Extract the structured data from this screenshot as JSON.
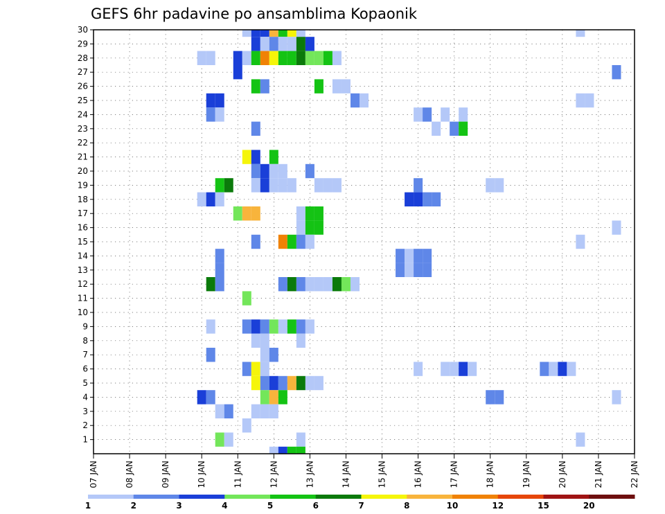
{
  "chart_data": {
    "type": "heatmap",
    "title": "GEFS 6hr padavine po ansamblima Kopaonik",
    "xlabel": "",
    "ylabel": "",
    "x_ticks": [
      "07 JAN",
      "08 JAN",
      "09 JAN",
      "10 JAN",
      "11 JAN",
      "12 JAN",
      "13 JAN",
      "14 JAN",
      "15 JAN",
      "16 JAN",
      "17 JAN",
      "18 JAN",
      "19 JAN",
      "20 JAN",
      "21 JAN",
      "22 JAN"
    ],
    "y_ticks": [
      1,
      2,
      3,
      4,
      5,
      6,
      7,
      8,
      9,
      10,
      11,
      12,
      13,
      14,
      15,
      16,
      17,
      18,
      19,
      20,
      21,
      22,
      23,
      24,
      25,
      26,
      27,
      28,
      29,
      30
    ],
    "xlim_days": [
      0,
      15
    ],
    "ylim_members": [
      0,
      30
    ],
    "grid": true,
    "color_scale": {
      "levels": [
        1,
        2,
        3,
        4,
        5,
        6,
        7,
        8,
        10,
        12,
        15,
        20
      ],
      "colors": [
        "#b4c8f8",
        "#5f87e8",
        "#1a3fd8",
        "#73e65a",
        "#14c314",
        "#0b7a0b",
        "#f5f50a",
        "#f8b43c",
        "#f08205",
        "#e6460a",
        "#a01414",
        "#6e0f0f"
      ]
    },
    "cells": [
      [
        30,
        11.25,
        1
      ],
      [
        30,
        11.5,
        3
      ],
      [
        30,
        11.75,
        3
      ],
      [
        30,
        12,
        8
      ],
      [
        30,
        12.25,
        5
      ],
      [
        30,
        12.5,
        7
      ],
      [
        30,
        12.75,
        1
      ],
      [
        30,
        20.5,
        1
      ],
      [
        29,
        11.5,
        3
      ],
      [
        29,
        11.75,
        1
      ],
      [
        29,
        12,
        2
      ],
      [
        29,
        12.25,
        1
      ],
      [
        29,
        12.5,
        1
      ],
      [
        29,
        12.75,
        6
      ],
      [
        29,
        13,
        3
      ],
      [
        28,
        10,
        1
      ],
      [
        28,
        10.25,
        1
      ],
      [
        28,
        11,
        3
      ],
      [
        28,
        11.25,
        1
      ],
      [
        28,
        11.5,
        5
      ],
      [
        28,
        11.75,
        9
      ],
      [
        28,
        12,
        7
      ],
      [
        28,
        12.25,
        5
      ],
      [
        28,
        12.5,
        5
      ],
      [
        28,
        12.75,
        6
      ],
      [
        28,
        13,
        4
      ],
      [
        28,
        13.25,
        4
      ],
      [
        28,
        13.5,
        5
      ],
      [
        28,
        13.75,
        1
      ],
      [
        27,
        11,
        3
      ],
      [
        27,
        21.5,
        2
      ],
      [
        26,
        11.5,
        5
      ],
      [
        26,
        11.75,
        2
      ],
      [
        26,
        13.25,
        5
      ],
      [
        26,
        13.75,
        1
      ],
      [
        26,
        14,
        1
      ],
      [
        25,
        10.25,
        3
      ],
      [
        25,
        10.5,
        3
      ],
      [
        25,
        14.25,
        2
      ],
      [
        25,
        14.5,
        1
      ],
      [
        25,
        20.5,
        1
      ],
      [
        25,
        20.75,
        1
      ],
      [
        24,
        10.25,
        2
      ],
      [
        24,
        10.5,
        1
      ],
      [
        24,
        16,
        1
      ],
      [
        24,
        16.25,
        2
      ],
      [
        24,
        16.75,
        1
      ],
      [
        24,
        17.25,
        1
      ],
      [
        23,
        11.5,
        2
      ],
      [
        23,
        16.5,
        1
      ],
      [
        23,
        17,
        2
      ],
      [
        23,
        17.25,
        5
      ],
      [
        21,
        11.25,
        7
      ],
      [
        21,
        11.5,
        3
      ],
      [
        21,
        12,
        5
      ],
      [
        20,
        11.5,
        2
      ],
      [
        20,
        11.75,
        3
      ],
      [
        20,
        12,
        1
      ],
      [
        20,
        12.25,
        1
      ],
      [
        20,
        13,
        2
      ],
      [
        19,
        10.5,
        5
      ],
      [
        19,
        10.75,
        6
      ],
      [
        19,
        11.5,
        1
      ],
      [
        19,
        11.75,
        3
      ],
      [
        19,
        12,
        1
      ],
      [
        19,
        12.25,
        1
      ],
      [
        19,
        12.5,
        1
      ],
      [
        19,
        13.25,
        1
      ],
      [
        19,
        13.5,
        1
      ],
      [
        19,
        13.75,
        1
      ],
      [
        19,
        16,
        2
      ],
      [
        19,
        18,
        1
      ],
      [
        19,
        18.25,
        1
      ],
      [
        18,
        10,
        1
      ],
      [
        18,
        10.25,
        3
      ],
      [
        18,
        10.5,
        1
      ],
      [
        18,
        15.75,
        3
      ],
      [
        18,
        16,
        3
      ],
      [
        18,
        16.25,
        2
      ],
      [
        18,
        16.5,
        2
      ],
      [
        17,
        11,
        4
      ],
      [
        17,
        11.25,
        8
      ],
      [
        17,
        11.5,
        8
      ],
      [
        17,
        12.75,
        1
      ],
      [
        17,
        13,
        5
      ],
      [
        17,
        13.25,
        5
      ],
      [
        16,
        12.75,
        1
      ],
      [
        16,
        13,
        5
      ],
      [
        16,
        13.25,
        5
      ],
      [
        16,
        21.5,
        1
      ],
      [
        15,
        11.5,
        2
      ],
      [
        15,
        12.25,
        9
      ],
      [
        15,
        12.5,
        5
      ],
      [
        15,
        12.75,
        2
      ],
      [
        15,
        13,
        1
      ],
      [
        15,
        20.5,
        1
      ],
      [
        14,
        10.5,
        2
      ],
      [
        14,
        15.5,
        2
      ],
      [
        14,
        15.75,
        1
      ],
      [
        14,
        16,
        2
      ],
      [
        14,
        16.25,
        2
      ],
      [
        13,
        10.5,
        2
      ],
      [
        13,
        15.5,
        2
      ],
      [
        13,
        15.75,
        1
      ],
      [
        13,
        16,
        2
      ],
      [
        13,
        16.25,
        2
      ],
      [
        12,
        10.25,
        6
      ],
      [
        12,
        10.5,
        2
      ],
      [
        12,
        12.25,
        2
      ],
      [
        12,
        12.5,
        6
      ],
      [
        12,
        12.75,
        2
      ],
      [
        12,
        13,
        1
      ],
      [
        12,
        13.25,
        1
      ],
      [
        12,
        13.5,
        1
      ],
      [
        12,
        13.75,
        6
      ],
      [
        12,
        14,
        4
      ],
      [
        12,
        14.25,
        1
      ],
      [
        11,
        11.25,
        4
      ],
      [
        9,
        10.25,
        1
      ],
      [
        9,
        11.25,
        2
      ],
      [
        9,
        11.5,
        3
      ],
      [
        9,
        11.75,
        2
      ],
      [
        9,
        12,
        4
      ],
      [
        9,
        12.25,
        1
      ],
      [
        9,
        12.5,
        5
      ],
      [
        9,
        12.75,
        2
      ],
      [
        9,
        13,
        1
      ],
      [
        8,
        11.5,
        1
      ],
      [
        8,
        11.75,
        1
      ],
      [
        8,
        12.75,
        1
      ],
      [
        7,
        10.25,
        2
      ],
      [
        7,
        11.75,
        1
      ],
      [
        7,
        12,
        2
      ],
      [
        6,
        11.25,
        2
      ],
      [
        6,
        11.5,
        7
      ],
      [
        6,
        11.75,
        1
      ],
      [
        6,
        16,
        1
      ],
      [
        6,
        16.75,
        1
      ],
      [
        6,
        17,
        1
      ],
      [
        6,
        17.25,
        3
      ],
      [
        6,
        17.5,
        1
      ],
      [
        6,
        19.5,
        2
      ],
      [
        6,
        19.75,
        1
      ],
      [
        6,
        20,
        3
      ],
      [
        6,
        20.25,
        1
      ],
      [
        5,
        11.5,
        7
      ],
      [
        5,
        11.75,
        2
      ],
      [
        5,
        12,
        3
      ],
      [
        5,
        12.25,
        2
      ],
      [
        5,
        12.5,
        8
      ],
      [
        5,
        12.75,
        6
      ],
      [
        5,
        13,
        1
      ],
      [
        5,
        13.25,
        1
      ],
      [
        4,
        10,
        3
      ],
      [
        4,
        10.25,
        2
      ],
      [
        4,
        11.75,
        4
      ],
      [
        4,
        12,
        8
      ],
      [
        4,
        12.25,
        5
      ],
      [
        4,
        18,
        2
      ],
      [
        4,
        18.25,
        2
      ],
      [
        4,
        21.5,
        1
      ],
      [
        3,
        10.5,
        1
      ],
      [
        3,
        10.75,
        2
      ],
      [
        3,
        11.5,
        1
      ],
      [
        3,
        11.75,
        1
      ],
      [
        3,
        12,
        1
      ],
      [
        2,
        11.25,
        1
      ],
      [
        1,
        10.5,
        4
      ],
      [
        1,
        10.75,
        1
      ],
      [
        1,
        12.75,
        1
      ],
      [
        1,
        20.5,
        1
      ],
      [
        0,
        12,
        1
      ],
      [
        0,
        12.25,
        3
      ],
      [
        0,
        12.5,
        5
      ],
      [
        0,
        12.75,
        5
      ]
    ]
  }
}
